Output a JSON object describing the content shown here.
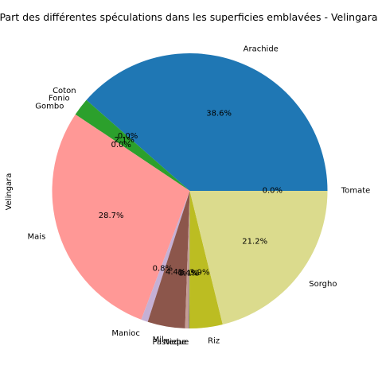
{
  "chart_data": {
    "type": "pie",
    "title": "Part des différentes spéculations dans les superficies emblavées - Velingara",
    "ylabel": "Velingara",
    "start_angle": 0,
    "direction": "counterclockwise",
    "slices": [
      {
        "label": "Arachide",
        "value": 38.6,
        "pct_label": "38.6%",
        "color": "#1f77b4"
      },
      {
        "label": "Coton",
        "value": 0.0,
        "pct_label": "0.0%",
        "color": "#ff7f0e"
      },
      {
        "label": "Fonio",
        "value": 2.1,
        "pct_label": "2.1%",
        "color": "#2ca02c"
      },
      {
        "label": "Gombo",
        "value": 0.0,
        "pct_label": "0.0%",
        "color": "#d62728"
      },
      {
        "label": "Mais",
        "value": 28.7,
        "pct_label": "28.7%",
        "color": "#ff9896"
      },
      {
        "label": "Manioc",
        "value": 0.8,
        "pct_label": "0.8%",
        "color": "#c5b0d5"
      },
      {
        "label": "Mil",
        "value": 4.4,
        "pct_label": "4.4%",
        "color": "#8c564b"
      },
      {
        "label": "Niebe",
        "value": 0.4,
        "pct_label": "0.4%",
        "color": "#c49c94"
      },
      {
        "label": "Pasteque",
        "value": 0.1,
        "pct_label": "0.1%",
        "color": "#7f7f7f"
      },
      {
        "label": "Riz",
        "value": 3.9,
        "pct_label": "3.9%",
        "color": "#bcbd22"
      },
      {
        "label": "Sorgho",
        "value": 21.2,
        "pct_label": "21.2%",
        "color": "#dbdb8d"
      },
      {
        "label": "Tomate",
        "value": 0.0,
        "pct_label": "0.0%",
        "color": "#17becf"
      }
    ]
  }
}
